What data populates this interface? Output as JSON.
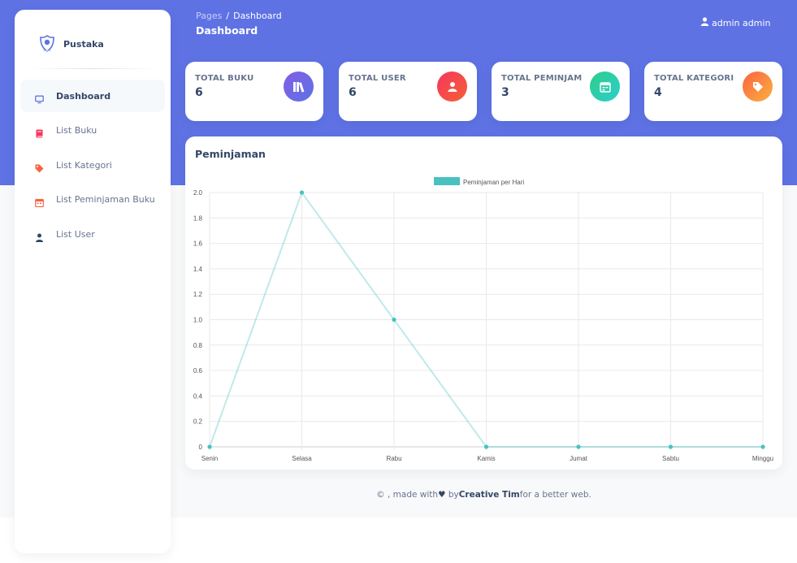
{
  "sidebar": {
    "brand": "Pustaka",
    "items": [
      {
        "label": "Dashboard",
        "icon": "monitor-icon"
      },
      {
        "label": "List Buku",
        "icon": "book-icon"
      },
      {
        "label": "List Kategori",
        "icon": "tag-icon"
      },
      {
        "label": "List Peminjaman Buku",
        "icon": "calendar-icon"
      },
      {
        "label": "List User",
        "icon": "user-icon"
      }
    ]
  },
  "header": {
    "breadcrumb_parent": "Pages",
    "breadcrumb_separator": "/",
    "breadcrumb_current": "Dashboard",
    "title": "Dashboard",
    "user": "admin admin"
  },
  "stats": [
    {
      "label": "TOTAL BUKU",
      "value": "6",
      "icon": "books-icon",
      "color": "#7158e2"
    },
    {
      "label": "TOTAL USER",
      "value": "6",
      "icon": "user-icon",
      "color": "#f5365c"
    },
    {
      "label": "TOTAL PEMINJAM",
      "value": "3",
      "icon": "calendar-icon",
      "color": "#2dce89"
    },
    {
      "label": "TOTAL KATEGORI",
      "value": "4",
      "icon": "tag-icon",
      "color": "#fb6340"
    }
  ],
  "chart_card": {
    "title": "Peminjaman"
  },
  "chart_data": {
    "type": "line",
    "categories": [
      "Senin",
      "Selasa",
      "Rabu",
      "Kamis",
      "Jumat",
      "Sabtu",
      "Minggu"
    ],
    "series": [
      {
        "name": "Peminjaman per Hari",
        "values": [
          0,
          2,
          1,
          0,
          0,
          0,
          0
        ],
        "color": "#4bc0c0"
      }
    ],
    "ylim": [
      0,
      2
    ],
    "yticks": [
      "0",
      "0.2",
      "0.4",
      "0.6",
      "0.8",
      "1.0",
      "1.2",
      "1.4",
      "1.6",
      "1.8",
      "2.0"
    ],
    "grid": true,
    "legend": "top-center"
  },
  "footer": {
    "prefix": "© , made with",
    "by": " by",
    "author": "Creative Tim",
    "suffix": "for a better web."
  }
}
